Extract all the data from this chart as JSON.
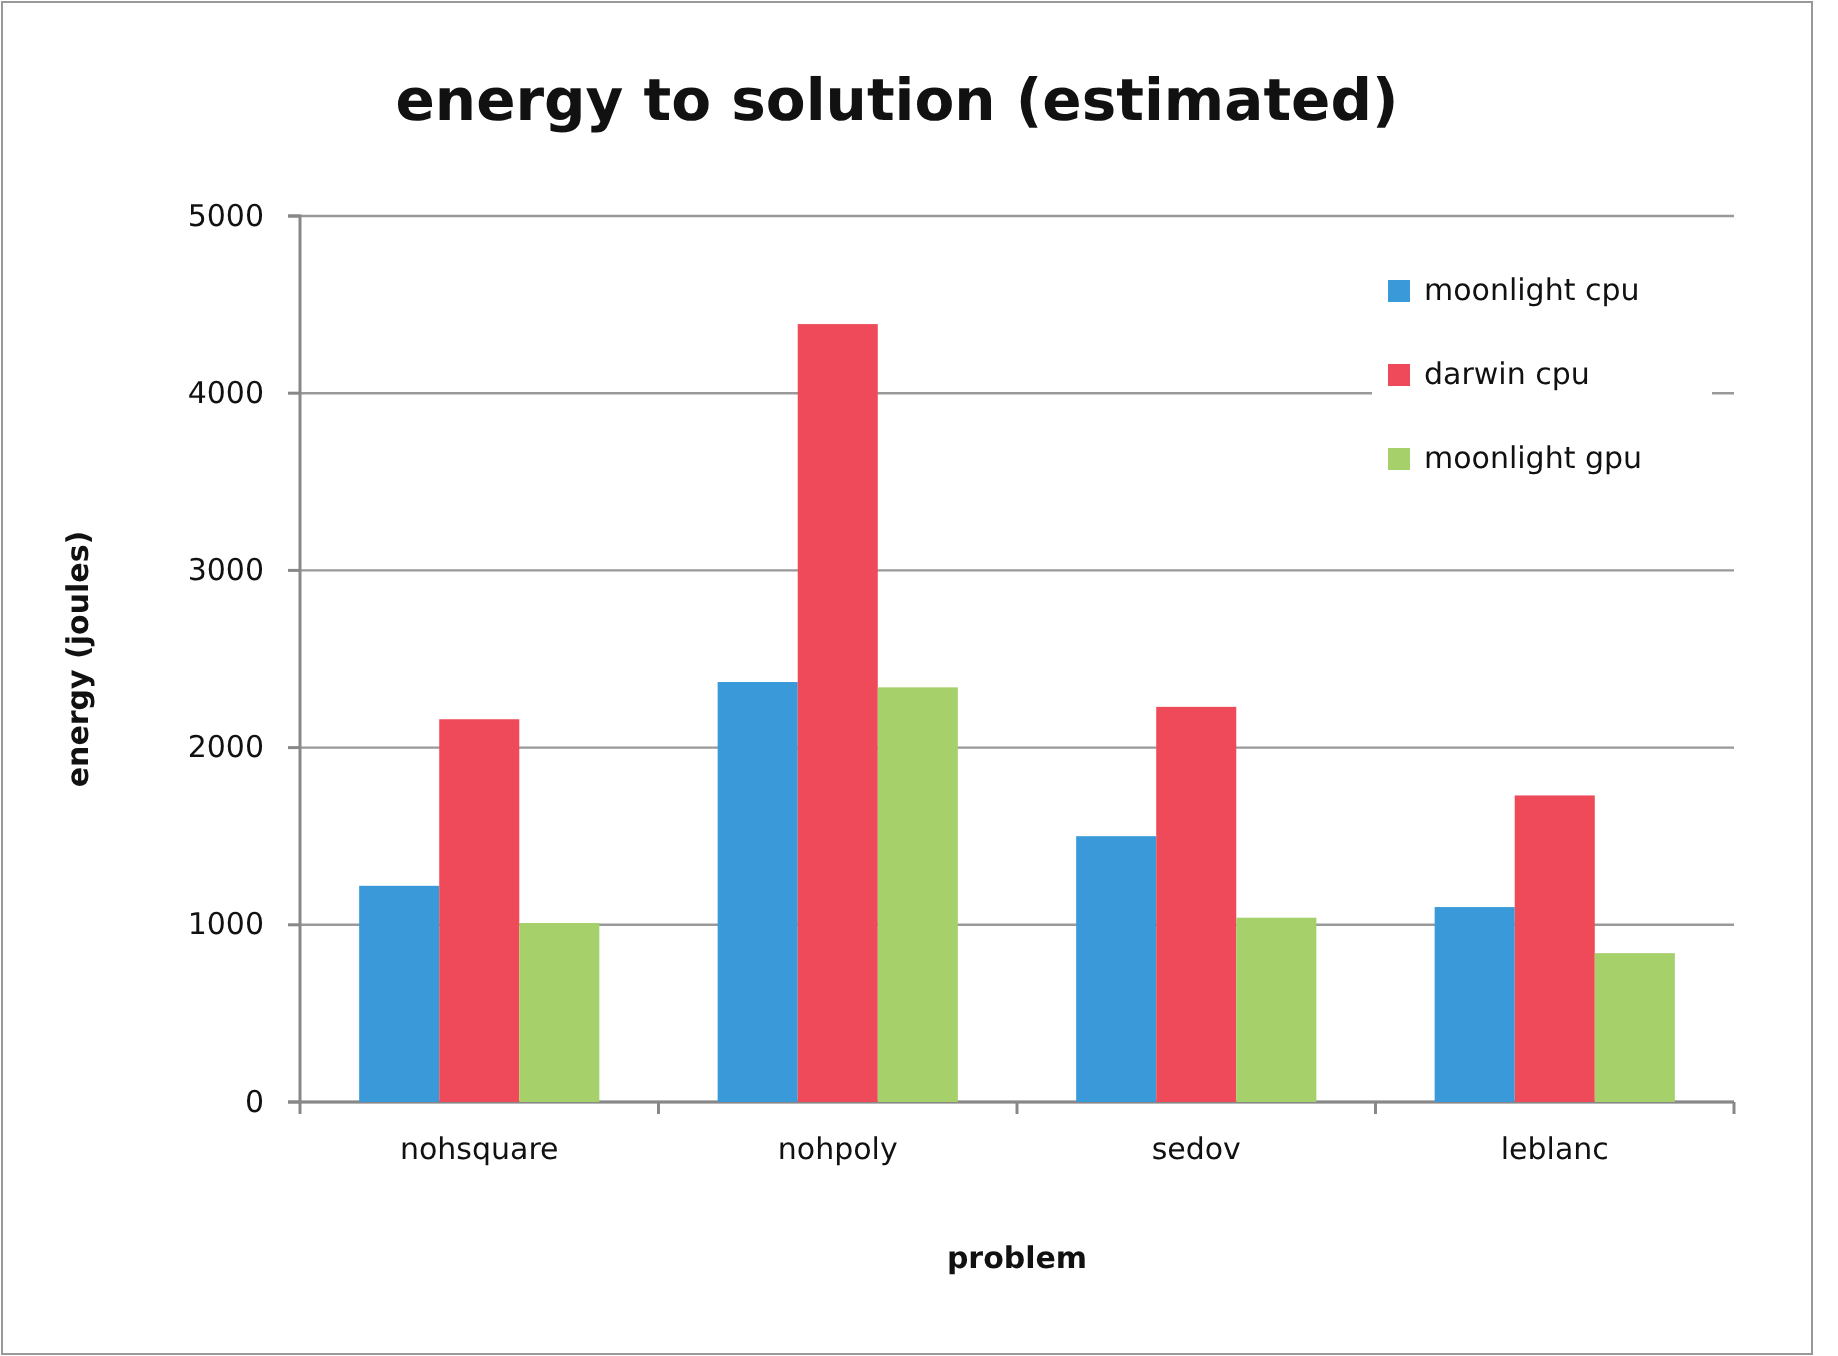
{
  "chart_data": {
    "type": "bar",
    "title": "energy to solution (estimated)",
    "xlabel": "problem",
    "ylabel": "energy (joules)",
    "categories": [
      "nohsquare",
      "nohpoly",
      "sedov",
      "leblanc"
    ],
    "series": [
      {
        "name": "moonlight cpu",
        "color": "#3a9ad9",
        "values": [
          1220,
          2370,
          1500,
          1100
        ]
      },
      {
        "name": "darwin cpu",
        "color": "#ee4a5a",
        "values": [
          2160,
          4390,
          2230,
          1730
        ]
      },
      {
        "name": "moonlight gpu",
        "color": "#a6d06a",
        "values": [
          1010,
          2340,
          1040,
          840
        ]
      }
    ],
    "ylim": [
      0,
      5000
    ],
    "yticks": [
      0,
      1000,
      2000,
      3000,
      4000,
      5000
    ],
    "grid": "y",
    "legend": "top right"
  }
}
